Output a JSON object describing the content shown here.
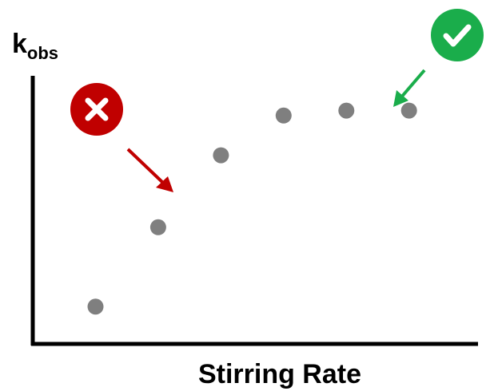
{
  "chart_data": {
    "type": "scatter",
    "xlabel": "Stirring Rate",
    "ylabel": {
      "main": "k",
      "subscript": "obs"
    },
    "x": [
      1,
      2,
      3,
      4,
      5,
      6
    ],
    "y": [
      0.15,
      0.47,
      0.76,
      0.92,
      0.94,
      0.94
    ],
    "xlim": [
      0,
      7.1
    ],
    "ylim": [
      0,
      1.08
    ],
    "point_color": "#7f7f7f",
    "annotations": [
      {
        "name": "cross",
        "color": "#c00000",
        "points_to_index": 1
      },
      {
        "name": "check",
        "color": "#1aad4b",
        "points_to_index": 4
      }
    ]
  }
}
